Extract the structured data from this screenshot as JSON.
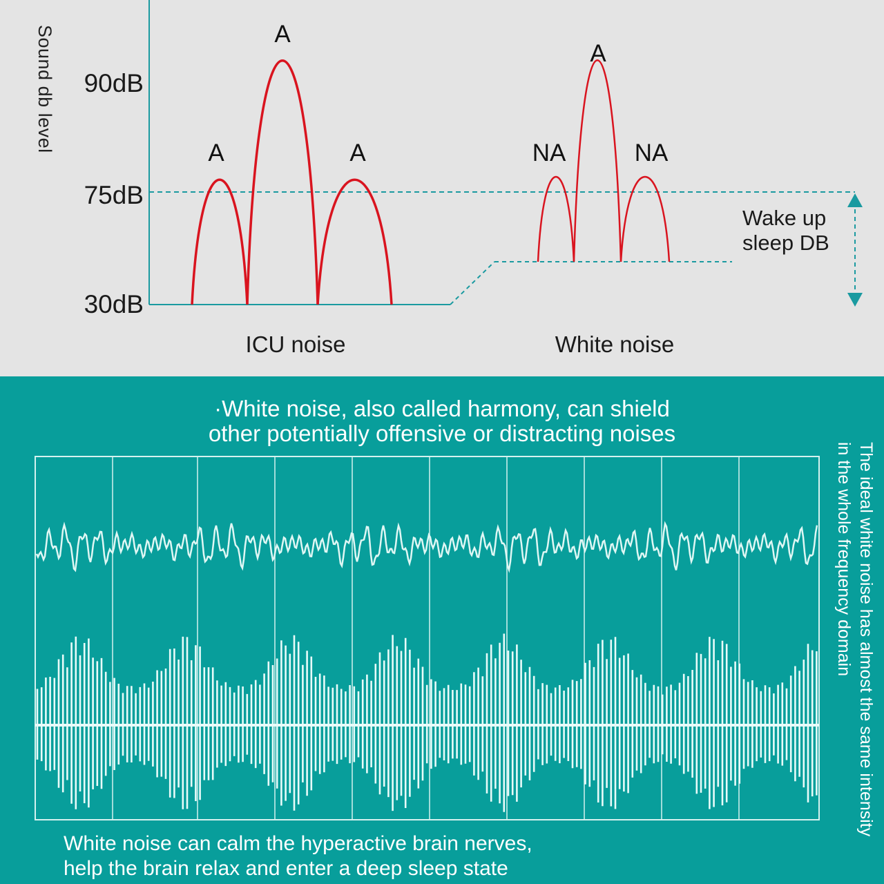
{
  "chart": {
    "y_axis_label": "Sound db level",
    "y_ticks": [
      "90dB",
      "75dB",
      "30dB"
    ],
    "icu_group": {
      "label": "ICU noise",
      "peaks": [
        {
          "label": "A",
          "level_db": 75
        },
        {
          "label": "A",
          "level_db": 90
        },
        {
          "label": "A",
          "level_db": 75
        }
      ]
    },
    "white_group": {
      "label": "White noise",
      "peaks": [
        {
          "label": "NA",
          "level_db": 75
        },
        {
          "label": "A",
          "level_db": 90
        },
        {
          "label": "NA",
          "level_db": 75
        }
      ]
    },
    "wake_label": "Wake up sleep DB",
    "colors": {
      "curve": "#d9141f",
      "axis": "#1a9aa0",
      "teal_bg": "#089e9b",
      "top_bg": "#e4e4e4"
    }
  },
  "info": {
    "headline_line1": "·White noise, also called harmony, can shield",
    "headline_line2": "other potentially offensive or distracting noises",
    "side_text": "The ideal white noise has almost the same intensity in the whole frequency domain",
    "footer_line1": "White noise can calm the hyperactive brain nerves,",
    "footer_line2": "help the brain relax and enter a deep sleep state"
  }
}
